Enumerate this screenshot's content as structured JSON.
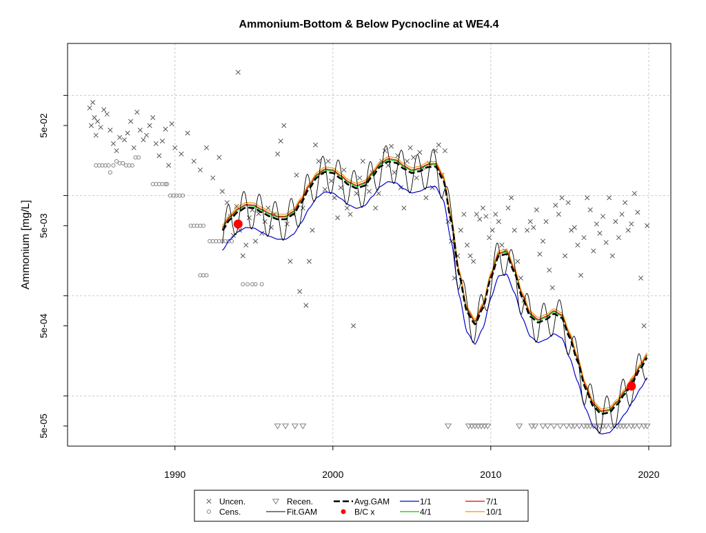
{
  "chart_data": {
    "type": "scatter",
    "title": "Ammonium-Bottom & Below Pycnocline at WE4.4",
    "xlabel": "",
    "ylabel": "Ammonium [mg/L]",
    "y_scale": "log10",
    "xlim": [
      1983.2,
      2021.4
    ],
    "ylim": [
      3.15e-05,
      0.33
    ],
    "grid": true,
    "legend_position": "bottom-center",
    "x_ticks": [
      1990,
      2000,
      2010,
      2020
    ],
    "x_tick_labels": [
      "1990",
      "2000",
      "2010",
      "2020"
    ],
    "y_ticks": [
      5e-05,
      0.0005,
      0.005,
      0.05
    ],
    "y_tick_labels": [
      "5e-05",
      "5e-04",
      "5e-03",
      "5e-02"
    ],
    "grid_y": [
      0.0001,
      0.001,
      0.01,
      0.1
    ],
    "colors": {
      "uncensored": "#555555",
      "censored": "#808080",
      "recensored": "#808080",
      "fit_gam": "#000000",
      "avg_gam": "#000000",
      "bc": "#ff0000",
      "s1_1": "#0000cd",
      "s4_1": "#00cc00",
      "s7_1": "#e00000",
      "s10_1": "#e69b00",
      "grid": "#c8c8c8"
    },
    "uncensored_points": [
      [
        1984.6,
        0.075
      ],
      [
        1984.7,
        0.05
      ],
      [
        1984.8,
        0.085
      ],
      [
        1984.9,
        0.06
      ],
      [
        1985.0,
        0.04
      ],
      [
        1985.1,
        0.055
      ],
      [
        1985.3,
        0.048
      ],
      [
        1985.5,
        0.072
      ],
      [
        1985.7,
        0.065
      ],
      [
        1985.9,
        0.045
      ],
      [
        1986.1,
        0.033
      ],
      [
        1986.3,
        0.028
      ],
      [
        1986.5,
        0.038
      ],
      [
        1986.8,
        0.036
      ],
      [
        1987.0,
        0.042
      ],
      [
        1987.2,
        0.055
      ],
      [
        1987.4,
        0.03
      ],
      [
        1987.6,
        0.068
      ],
      [
        1987.8,
        0.045
      ],
      [
        1988.0,
        0.036
      ],
      [
        1988.2,
        0.04
      ],
      [
        1988.4,
        0.05
      ],
      [
        1988.6,
        0.06
      ],
      [
        1988.8,
        0.033
      ],
      [
        1989.0,
        0.025
      ],
      [
        1989.2,
        0.035
      ],
      [
        1989.4,
        0.046
      ],
      [
        1989.6,
        0.02
      ],
      [
        1989.8,
        0.052
      ],
      [
        1990.0,
        0.03
      ],
      [
        1990.4,
        0.026
      ],
      [
        1990.8,
        0.042
      ],
      [
        1991.2,
        0.022
      ],
      [
        1991.6,
        0.018
      ],
      [
        1992.0,
        0.03
      ],
      [
        1992.4,
        0.015
      ],
      [
        1992.8,
        0.024
      ],
      [
        1993.0,
        0.011
      ],
      [
        1993.3,
        0.0085
      ],
      [
        1993.5,
        0.0062
      ],
      [
        1993.7,
        0.004
      ],
      [
        1993.9,
        0.0078
      ],
      [
        1994.0,
        0.17
      ],
      [
        1994.1,
        0.0045
      ],
      [
        1994.3,
        0.0025
      ],
      [
        1994.5,
        0.0032
      ],
      [
        1994.7,
        0.006
      ],
      [
        1994.9,
        0.0072
      ],
      [
        1995.1,
        0.0035
      ],
      [
        1995.3,
        0.0066
      ],
      [
        1995.5,
        0.0042
      ],
      [
        1995.7,
        0.0055
      ],
      [
        1995.9,
        0.0075
      ],
      [
        1996.1,
        0.0048
      ],
      [
        1996.3,
        0.0065
      ],
      [
        1996.5,
        0.026
      ],
      [
        1996.7,
        0.035
      ],
      [
        1996.9,
        0.05
      ],
      [
        1997.1,
        0.0052
      ],
      [
        1997.3,
        0.0022
      ],
      [
        1997.5,
        0.0065
      ],
      [
        1997.7,
        0.016
      ],
      [
        1997.9,
        0.0011
      ],
      [
        1998.1,
        0.0075
      ],
      [
        1998.3,
        0.0008
      ],
      [
        1998.5,
        0.0022
      ],
      [
        1998.7,
        0.0045
      ],
      [
        1998.9,
        0.032
      ],
      [
        1999.1,
        0.022
      ],
      [
        1999.3,
        0.017
      ],
      [
        1999.5,
        0.0115
      ],
      [
        1999.7,
        0.022
      ],
      [
        1999.9,
        0.014
      ],
      [
        2000.1,
        0.0095
      ],
      [
        2000.3,
        0.006
      ],
      [
        2000.5,
        0.012
      ],
      [
        2000.7,
        0.018
      ],
      [
        2000.9,
        0.0075
      ],
      [
        2001.1,
        0.0065
      ],
      [
        2001.3,
        0.0005
      ],
      [
        2001.5,
        0.0105
      ],
      [
        2001.7,
        0.015
      ],
      [
        2001.9,
        0.022
      ],
      [
        2002.1,
        0.013
      ],
      [
        2002.3,
        0.011
      ],
      [
        2002.5,
        0.017
      ],
      [
        2002.7,
        0.0075
      ],
      [
        2002.9,
        0.0105
      ],
      [
        2003.1,
        0.022
      ],
      [
        2003.3,
        0.028
      ],
      [
        2003.5,
        0.02
      ],
      [
        2003.7,
        0.031
      ],
      [
        2003.9,
        0.017
      ],
      [
        2004.1,
        0.025
      ],
      [
        2004.3,
        0.012
      ],
      [
        2004.5,
        0.0075
      ],
      [
        2004.7,
        0.022
      ],
      [
        2004.9,
        0.03
      ],
      [
        2005.1,
        0.024
      ],
      [
        2005.3,
        0.015
      ],
      [
        2005.5,
        0.027
      ],
      [
        2005.7,
        0.019
      ],
      [
        2005.9,
        0.0095
      ],
      [
        2006.1,
        0.021
      ],
      [
        2006.3,
        0.012
      ],
      [
        2006.5,
        0.028
      ],
      [
        2006.7,
        0.032
      ],
      [
        2006.9,
        0.016
      ],
      [
        2007.1,
        0.028
      ],
      [
        2007.3,
        0.0055
      ],
      [
        2007.5,
        0.0035
      ],
      [
        2007.7,
        0.0015
      ],
      [
        2007.9,
        0.0025
      ],
      [
        2008.1,
        0.0045
      ],
      [
        2008.3,
        0.0065
      ],
      [
        2008.5,
        0.0032
      ],
      [
        2008.7,
        0.0025
      ],
      [
        2008.9,
        0.0022
      ],
      [
        2009.1,
        0.0065
      ],
      [
        2009.3,
        0.0058
      ],
      [
        2009.5,
        0.0075
      ],
      [
        2009.7,
        0.0062
      ],
      [
        2009.9,
        0.0038
      ],
      [
        2010.1,
        0.0045
      ],
      [
        2010.3,
        0.0065
      ],
      [
        2010.5,
        0.0055
      ],
      [
        2010.7,
        0.0032
      ],
      [
        2010.9,
        0.0028
      ],
      [
        2011.1,
        0.0075
      ],
      [
        2011.3,
        0.0095
      ],
      [
        2011.5,
        0.0045
      ],
      [
        2011.7,
        0.0022
      ],
      [
        2011.9,
        0.0015
      ],
      [
        2012.1,
        0.0009
      ],
      [
        2012.3,
        0.0045
      ],
      [
        2012.5,
        0.0055
      ],
      [
        2012.7,
        0.0048
      ],
      [
        2012.9,
        0.0072
      ],
      [
        2013.1,
        0.0026
      ],
      [
        2013.3,
        0.0035
      ],
      [
        2013.5,
        0.0055
      ],
      [
        2013.7,
        0.0018
      ],
      [
        2013.9,
        0.0012
      ],
      [
        2014.1,
        0.008
      ],
      [
        2014.3,
        0.0065
      ],
      [
        2014.5,
        0.0095
      ],
      [
        2014.7,
        0.0025
      ],
      [
        2014.9,
        0.0085
      ],
      [
        2015.1,
        0.0045
      ],
      [
        2015.3,
        0.0048
      ],
      [
        2015.5,
        0.0032
      ],
      [
        2015.7,
        0.0016
      ],
      [
        2015.9,
        0.0038
      ],
      [
        2016.1,
        0.0095
      ],
      [
        2016.3,
        0.0072
      ],
      [
        2016.5,
        0.0028
      ],
      [
        2016.7,
        0.0052
      ],
      [
        2016.9,
        0.0042
      ],
      [
        2017.1,
        0.0062
      ],
      [
        2017.3,
        0.0034
      ],
      [
        2017.5,
        0.0095
      ],
      [
        2017.7,
        0.0025
      ],
      [
        2017.9,
        0.0055
      ],
      [
        2018.1,
        0.0038
      ],
      [
        2018.3,
        0.0065
      ],
      [
        2018.5,
        0.0085
      ],
      [
        2018.7,
        0.0045
      ],
      [
        2018.9,
        0.0052
      ],
      [
        2019.1,
        0.0105
      ],
      [
        2019.3,
        0.0068
      ],
      [
        2019.5,
        0.0015
      ],
      [
        2019.7,
        0.0005
      ],
      [
        2019.9,
        0.005
      ]
    ],
    "censored_points": [
      [
        1985.0,
        0.02
      ],
      [
        1985.2,
        0.02
      ],
      [
        1985.4,
        0.02
      ],
      [
        1985.6,
        0.02
      ],
      [
        1985.8,
        0.02
      ],
      [
        1985.9,
        0.017
      ],
      [
        1986.1,
        0.02
      ],
      [
        1986.3,
        0.022
      ],
      [
        1986.5,
        0.021
      ],
      [
        1986.7,
        0.021
      ],
      [
        1986.9,
        0.02
      ],
      [
        1987.1,
        0.02
      ],
      [
        1987.3,
        0.02
      ],
      [
        1987.5,
        0.024
      ],
      [
        1987.7,
        0.024
      ],
      [
        1988.6,
        0.013
      ],
      [
        1988.8,
        0.013
      ],
      [
        1989.0,
        0.013
      ],
      [
        1989.2,
        0.013
      ],
      [
        1989.4,
        0.013
      ],
      [
        1989.5,
        0.013
      ],
      [
        1989.7,
        0.01
      ],
      [
        1989.9,
        0.01
      ],
      [
        1990.1,
        0.01
      ],
      [
        1990.3,
        0.01
      ],
      [
        1990.5,
        0.01
      ],
      [
        1991.0,
        0.005
      ],
      [
        1991.2,
        0.005
      ],
      [
        1991.4,
        0.005
      ],
      [
        1991.6,
        0.005
      ],
      [
        1991.8,
        0.005
      ],
      [
        1992.2,
        0.0035
      ],
      [
        1992.4,
        0.0035
      ],
      [
        1992.6,
        0.0035
      ],
      [
        1992.8,
        0.0035
      ],
      [
        1993.0,
        0.0035
      ],
      [
        1993.2,
        0.0035
      ],
      [
        1993.4,
        0.0035
      ],
      [
        1993.6,
        0.0035
      ],
      [
        1991.6,
        0.0016
      ],
      [
        1991.8,
        0.0016
      ],
      [
        1992.0,
        0.0016
      ],
      [
        1994.3,
        0.0013
      ],
      [
        1994.6,
        0.0013
      ],
      [
        1994.9,
        0.0013
      ],
      [
        1995.1,
        0.0013
      ],
      [
        1995.5,
        0.0013
      ]
    ],
    "recensored_points": [
      [
        1996.5,
        5e-05
      ],
      [
        1997.0,
        5e-05
      ],
      [
        1997.6,
        5e-05
      ],
      [
        1998.1,
        5e-05
      ],
      [
        2007.3,
        5e-05
      ],
      [
        2008.6,
        5e-05
      ],
      [
        2008.8,
        5e-05
      ],
      [
        2009.0,
        5e-05
      ],
      [
        2009.2,
        5e-05
      ],
      [
        2009.4,
        5e-05
      ],
      [
        2009.6,
        5e-05
      ],
      [
        2009.8,
        5e-05
      ],
      [
        2011.8,
        5e-05
      ],
      [
        2012.6,
        5e-05
      ],
      [
        2012.8,
        5e-05
      ],
      [
        2013.3,
        5e-05
      ],
      [
        2013.6,
        5e-05
      ],
      [
        2014.0,
        5e-05
      ],
      [
        2014.4,
        5e-05
      ],
      [
        2014.8,
        5e-05
      ],
      [
        2015.1,
        5e-05
      ],
      [
        2015.3,
        5e-05
      ],
      [
        2015.6,
        5e-05
      ],
      [
        2015.9,
        5e-05
      ],
      [
        2016.1,
        5e-05
      ],
      [
        2016.3,
        5e-05
      ],
      [
        2016.5,
        5e-05
      ],
      [
        2016.7,
        5e-05
      ],
      [
        2016.9,
        5e-05
      ],
      [
        2017.1,
        5e-05
      ],
      [
        2017.3,
        5e-05
      ],
      [
        2017.6,
        5e-05
      ],
      [
        2018.0,
        5e-05
      ],
      [
        2018.2,
        5e-05
      ],
      [
        2018.4,
        5e-05
      ],
      [
        2018.6,
        5e-05
      ],
      [
        2018.9,
        5e-05
      ],
      [
        2019.1,
        5e-05
      ],
      [
        2019.4,
        5e-05
      ],
      [
        2019.7,
        5e-05
      ],
      [
        2019.9,
        5e-05
      ]
    ],
    "avg_gam_knots": [
      [
        1993.0,
        0.0045
      ],
      [
        1993.5,
        0.0058
      ],
      [
        1994.0,
        0.0069
      ],
      [
        1994.5,
        0.0076
      ],
      [
        1995.0,
        0.0075
      ],
      [
        1995.5,
        0.0068
      ],
      [
        1996.0,
        0.0062
      ],
      [
        1996.5,
        0.0058
      ],
      [
        1997.0,
        0.0058
      ],
      [
        1997.5,
        0.0065
      ],
      [
        1998.0,
        0.0085
      ],
      [
        1998.5,
        0.0118
      ],
      [
        1999.0,
        0.0152
      ],
      [
        1999.5,
        0.0172
      ],
      [
        2000.0,
        0.0168
      ],
      [
        2000.5,
        0.0148
      ],
      [
        2001.0,
        0.0128
      ],
      [
        2001.5,
        0.0118
      ],
      [
        2002.0,
        0.0125
      ],
      [
        2002.5,
        0.0155
      ],
      [
        2003.0,
        0.0195
      ],
      [
        2003.5,
        0.0218
      ],
      [
        2004.0,
        0.0212
      ],
      [
        2004.5,
        0.0185
      ],
      [
        2005.0,
        0.0168
      ],
      [
        2005.5,
        0.0175
      ],
      [
        2006.0,
        0.0192
      ],
      [
        2006.5,
        0.0195
      ],
      [
        2007.0,
        0.0142
      ],
      [
        2007.5,
        0.0055
      ],
      [
        2008.0,
        0.0016
      ],
      [
        2008.5,
        0.00068
      ],
      [
        2009.0,
        0.00052
      ],
      [
        2009.5,
        0.00075
      ],
      [
        2010.0,
        0.0015
      ],
      [
        2010.5,
        0.0025
      ],
      [
        2011.0,
        0.0026
      ],
      [
        2011.5,
        0.0017
      ],
      [
        2012.0,
        0.00095
      ],
      [
        2012.5,
        0.00062
      ],
      [
        2013.0,
        0.00054
      ],
      [
        2013.5,
        0.00058
      ],
      [
        2014.0,
        0.00066
      ],
      [
        2014.5,
        0.0006
      ],
      [
        2015.0,
        0.00038
      ],
      [
        2015.5,
        0.00022
      ],
      [
        2016.0,
        0.000118
      ],
      [
        2016.5,
        7.8e-05
      ],
      [
        2017.0,
        6.6e-05
      ],
      [
        2017.5,
        6.8e-05
      ],
      [
        2018.0,
        8.2e-05
      ],
      [
        2018.5,
        0.000105
      ],
      [
        2019.0,
        0.00014
      ],
      [
        2019.5,
        0.00019
      ],
      [
        2019.9,
        0.00024
      ]
    ],
    "bc_points": [
      [
        1994.0,
        0.0052
      ],
      [
        2018.9,
        0.000125
      ]
    ],
    "seasonal_amplitude_log10": 0.19,
    "scenario_offsets_log10": {
      "s1_1": -0.2,
      "s4_1": 0.02,
      "s7_1": 0.03,
      "s10_1": 0.05
    },
    "legend": {
      "uncensored": "Uncen.",
      "censored": "Cens.",
      "recensored": "Recen.",
      "fit_gam": "Fit.GAM",
      "avg_gam": "Avg.GAM",
      "bc": "B/C x",
      "s1_1": "1/1",
      "s4_1": "4/1",
      "s7_1": "7/1",
      "s10_1": "10/1"
    }
  }
}
